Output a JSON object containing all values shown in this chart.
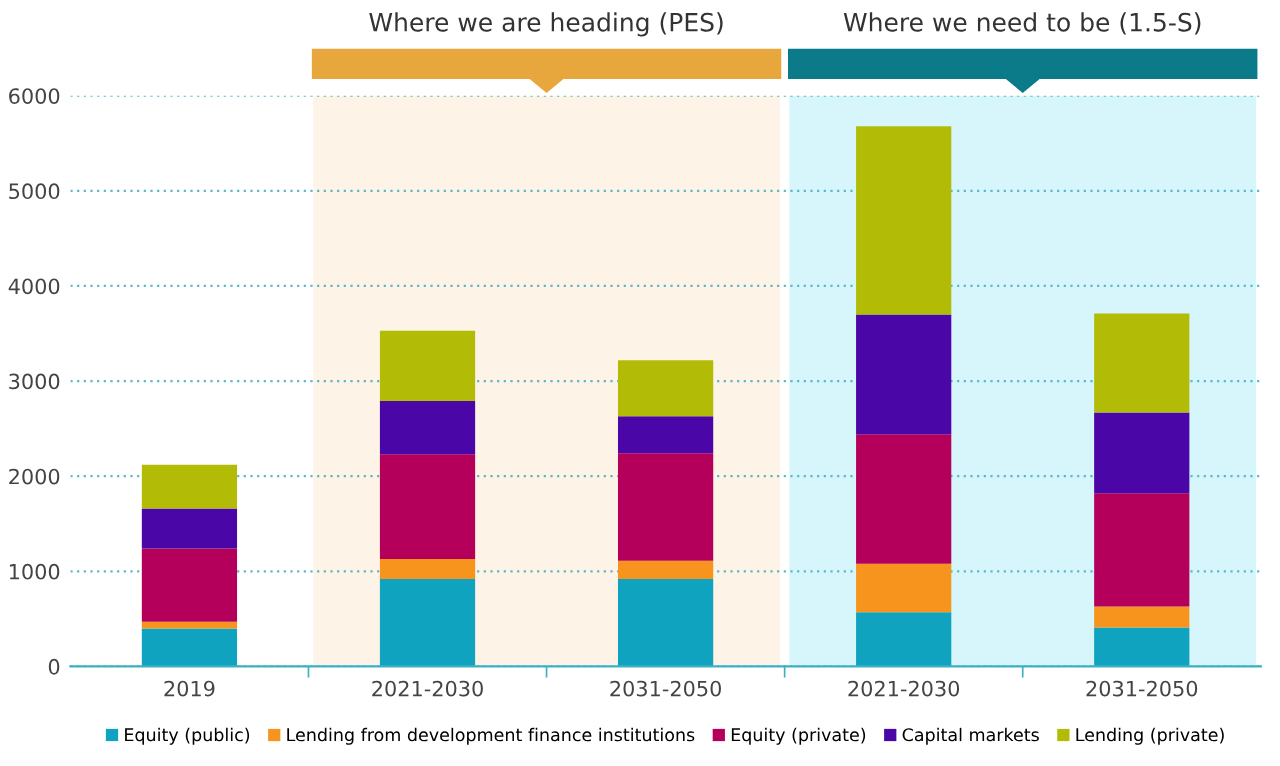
{
  "chart_data": {
    "type": "bar",
    "stacked": true,
    "categories": [
      "2019",
      "2021-2030",
      "2031-2050",
      "2021-2030",
      "2031-2050"
    ],
    "series": [
      {
        "name": "Equity (public)",
        "color": "#10a3bf",
        "values": [
          400,
          920,
          920,
          570,
          410
        ]
      },
      {
        "name": "Lending from development finance institutions",
        "color": "#f7941d",
        "values": [
          70,
          210,
          190,
          510,
          220
        ]
      },
      {
        "name": "Equity (private)",
        "color": "#b5005b",
        "values": [
          770,
          1100,
          1130,
          1360,
          1190
        ]
      },
      {
        "name": "Capital markets",
        "color": "#4b06a8",
        "values": [
          420,
          560,
          390,
          1260,
          850
        ]
      },
      {
        "name": "Lending (private)",
        "color": "#b2bc06",
        "values": [
          460,
          740,
          590,
          1980,
          1040
        ]
      }
    ],
    "annotations": [
      "Where we are heading (PES)",
      "Where we need to be (1.5-S)"
    ],
    "ylim": [
      0,
      6000
    ],
    "yticks": [
      0,
      1000,
      2000,
      3000,
      4000,
      5000,
      6000
    ],
    "grid": "y",
    "legend": "bottom"
  }
}
